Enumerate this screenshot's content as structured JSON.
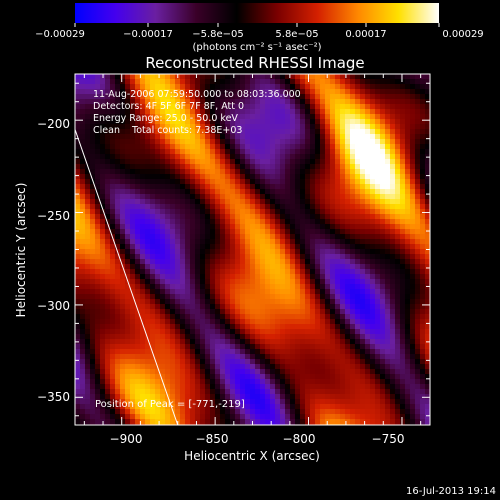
{
  "chart_data": {
    "type": "heatmap",
    "title": "Reconstructed RHESSI Image",
    "xlabel": "Heliocentric X (arcsec)",
    "ylabel": "Heliocentric Y (arcsec)",
    "xlim": [
      -925,
      -735
    ],
    "ylim": [
      -365,
      -175
    ],
    "x_ticks": [
      -900,
      -850,
      -800,
      -750
    ],
    "x_tick_labels": [
      "−900",
      "−850",
      "−800",
      "−750"
    ],
    "y_ticks": [
      -350,
      -300,
      -250,
      -200
    ],
    "y_tick_labels": [
      "−350",
      "−300",
      "−250",
      "−200"
    ],
    "colorbar": {
      "range": [
        -0.00029,
        0.00029
      ],
      "tick_labels": [
        "−0.00029",
        "−0.00017",
        "−5.8e−05",
        "5.8e−05",
        "0.00017",
        "0.00029"
      ],
      "unit_label": "(photons cm⁻² s⁻¹ asec⁻²)",
      "colors": [
        "#0000ff",
        "#4400ee",
        "#6a1fa0",
        "#3a0028",
        "#000000",
        "#7a0000",
        "#d42000",
        "#ff8800",
        "#ffe000",
        "#ffffff"
      ]
    },
    "info_lines": [
      "11-Aug-2006 07:59:50.000 to 08:03:36.000",
      "Detectors: 4F 5F 6F 7F 8F, Att 0",
      "Energy Range: 25.0 - 50.0 keV",
      "Clean    Total counts: 7.38E+03"
    ],
    "peak_label": "Position of Peak = [-771,-219]",
    "peak": [
      -771,
      -219
    ],
    "limb_line": [
      [
        -925,
        -205
      ],
      [
        -870,
        -365
      ]
    ]
  },
  "footer": {
    "timestamp": "16-Jul-2013 19:14"
  }
}
